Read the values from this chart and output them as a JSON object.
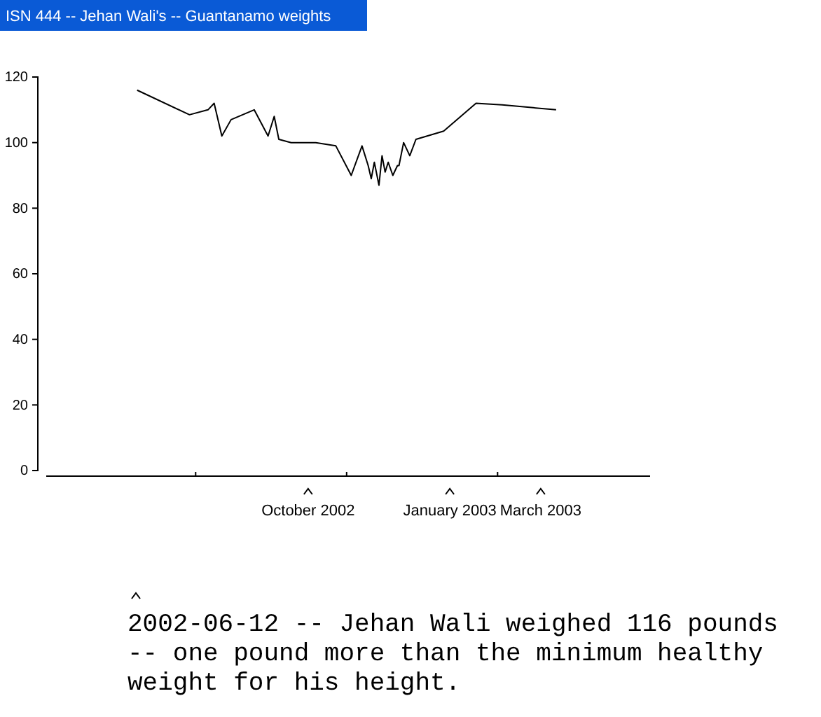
{
  "chart_data": {
    "type": "line",
    "title": "ISN 444 -- Jehan Wali's -- Guantanamo weights",
    "x": [
      "2002-06-12",
      "2002-07-16",
      "2002-07-28",
      "2002-08-01",
      "2002-08-06",
      "2002-08-12",
      "2002-08-27",
      "2002-09-05",
      "2002-09-09",
      "2002-09-12",
      "2002-09-20",
      "2002-10-06",
      "2002-10-19",
      "2002-10-29",
      "2002-11-05",
      "2002-11-09",
      "2002-11-11",
      "2002-11-13",
      "2002-11-16",
      "2002-11-18",
      "2002-11-20",
      "2002-11-22",
      "2002-11-25",
      "2002-11-28",
      "2002-11-29",
      "2002-12-02",
      "2002-12-06",
      "2002-12-10",
      "2002-12-28",
      "2003-01-18",
      "2003-02-04",
      "2003-03-11"
    ],
    "values": [
      116,
      108.5,
      110,
      112,
      102,
      107,
      110,
      102,
      108,
      101,
      100,
      100,
      99,
      90,
      99,
      93,
      89,
      94,
      87,
      96,
      91,
      94,
      90,
      93,
      93,
      100,
      96,
      101,
      103.5,
      112,
      111.5,
      110
    ],
    "color": "#000000",
    "xlim": [
      "2002-04-14",
      "2003-05-11"
    ],
    "xticks": [
      {
        "value": "2002-07-20",
        "label": null
      },
      {
        "value": "2002-10-26",
        "label": null
      },
      {
        "value": "2003-02-01",
        "label": null
      },
      {
        "value": "2003-03",
        "label": "March 2003"
      },
      {
        "value": "2003-01",
        "label": "January 2003"
      },
      {
        "value": "2002-10",
        "label": "October 2002"
      }
    ],
    "ylim": [
      0,
      120
    ],
    "yticks": [
      0,
      20,
      40,
      60,
      80,
      100,
      120
    ],
    "annotations": [
      "2002-06-12 -- Jehan Wali weighed 116 pounds -- one pound more than the minimum healthy weight for his height."
    ]
  }
}
